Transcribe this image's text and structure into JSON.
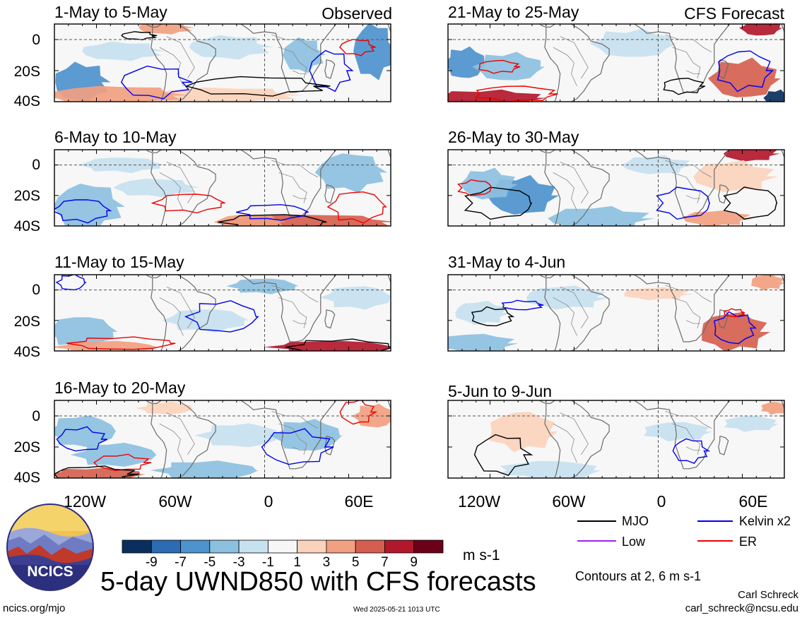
{
  "header": {
    "left_tag": "Observed",
    "right_tag": "CFS Forecast"
  },
  "panels_left": [
    {
      "title": "1-May to 5-May"
    },
    {
      "title": "6-May to 10-May"
    },
    {
      "title": "11-May to 15-May"
    },
    {
      "title": "16-May to 20-May"
    }
  ],
  "panels_right": [
    {
      "title": "21-May to 25-May"
    },
    {
      "title": "26-May to 30-May"
    },
    {
      "title": "31-May to 4-Jun"
    },
    {
      "title": "5-Jun to 9-Jun"
    }
  ],
  "lat_labels": [
    "0",
    "20S",
    "40S"
  ],
  "lon_labels": [
    "120W",
    "60W",
    "0",
    "60E"
  ],
  "colorbar": {
    "ticks": [
      "-9",
      "-7",
      "-5",
      "-3",
      "-1",
      "1",
      "3",
      "5",
      "7",
      "9"
    ],
    "colors": [
      "#0a2f5e",
      "#2b6cb4",
      "#4d93cd",
      "#8cc0df",
      "#c7e1ef",
      "#f7f7f7",
      "#fbd2bc",
      "#f1a081",
      "#d55f4f",
      "#b2182b",
      "#6b0018"
    ],
    "units": "m s-1"
  },
  "legend": {
    "items": [
      {
        "label": "MJO",
        "color": "#000000"
      },
      {
        "label": "Kelvin x2",
        "color": "#0000ee"
      },
      {
        "label": "Low",
        "color": "#a020f0"
      },
      {
        "label": "ER",
        "color": "#ee0000"
      }
    ],
    "contours_note": "Contours at 2, 6 m s-1"
  },
  "footer": {
    "main_title": "5-day UWND850 with CFS forecasts",
    "logo_text": "NCICS",
    "url": "ncics.org/mjo",
    "timestamp": "Wed 2025-05-21 1013 UTC",
    "author": "Carl Schreck",
    "email": "carl_schreck@ncsu.edu"
  }
}
